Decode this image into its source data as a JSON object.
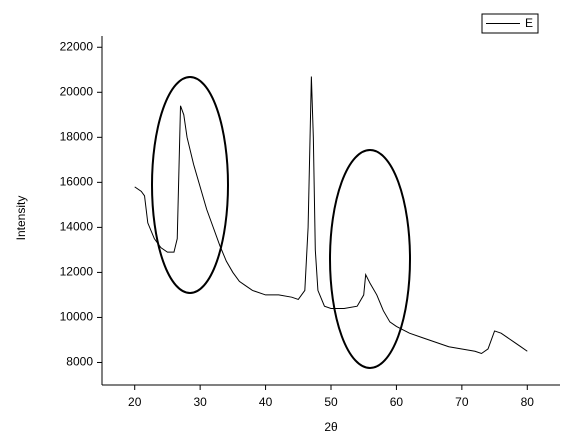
{
  "chart_data": {
    "type": "line",
    "x_label": "2θ",
    "y_label": "Intensity",
    "xlim": [
      15,
      85
    ],
    "ylim": [
      7000,
      22500
    ],
    "xticks": [
      20,
      30,
      40,
      50,
      60,
      70,
      80
    ],
    "yticks": [
      8000,
      10000,
      12000,
      14000,
      16000,
      18000,
      20000,
      22000
    ],
    "legend": "upper right",
    "x": [
      20,
      21,
      21.5,
      22,
      23,
      24,
      25,
      26,
      26.5,
      27,
      27.5,
      28,
      29,
      30,
      31,
      32,
      33,
      34,
      35,
      36,
      37,
      38,
      40,
      42,
      44,
      45,
      46,
      46.5,
      47,
      47.3,
      47.6,
      48,
      49,
      50,
      52,
      54,
      55,
      55.3,
      56,
      57,
      58,
      59,
      60,
      62,
      64,
      66,
      68,
      70,
      72,
      73,
      74,
      75,
      76,
      77,
      78,
      79,
      80
    ],
    "series": [
      {
        "name": "E",
        "color": "#000000",
        "values": [
          15800,
          15600,
          15400,
          14200,
          13500,
          13100,
          12900,
          12900,
          13500,
          19400,
          19000,
          18000,
          16800,
          15800,
          14800,
          14000,
          13200,
          12500,
          12000,
          11600,
          11400,
          11200,
          11000,
          11000,
          10900,
          10800,
          11200,
          14000,
          20700,
          18000,
          13000,
          11200,
          10500,
          10400,
          10400,
          10500,
          11000,
          11900,
          11500,
          11000,
          10300,
          9800,
          9600,
          9300,
          9100,
          8900,
          8700,
          8600,
          8500,
          8400,
          8600,
          9400,
          9300,
          9100,
          8900,
          8700,
          8500
        ]
      }
    ]
  }
}
